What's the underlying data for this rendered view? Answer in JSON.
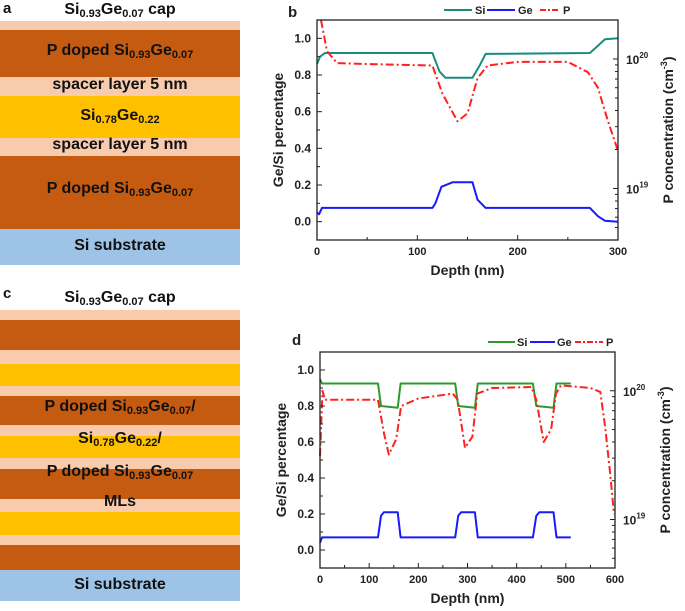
{
  "panel_a": {
    "letter": "a",
    "cap": [
      "Si",
      "0.93",
      "Ge",
      "0.07",
      " cap"
    ],
    "doped_top": [
      "P doped Si",
      "0.93",
      "Ge",
      "0.07"
    ],
    "spacer_top": "spacer layer 5 nm",
    "sige": [
      "Si",
      "0.78",
      "Ge",
      "0.22"
    ],
    "spacer_bottom": "spacer layer 5 nm",
    "doped_bottom": [
      "P doped Si",
      "0.93",
      "Ge",
      "0.07"
    ],
    "substrate": "Si substrate"
  },
  "panel_c": {
    "letter": "c",
    "cap": [
      "Si",
      "0.93",
      "Ge",
      "0.07",
      " cap"
    ],
    "line1": [
      "P doped Si",
      "0.93",
      "Ge",
      "0.07",
      "/"
    ],
    "line2": [
      "Si",
      "0.78",
      "Ge",
      "0.22",
      "/"
    ],
    "line3": [
      "P doped Si",
      "0.93",
      "Ge",
      "0.07"
    ],
    "line4": "MLs",
    "substrate": "Si substrate"
  },
  "layer_colors": {
    "spacer": "#f8cbad",
    "doped": "#c55a11",
    "sige": "#ffc000",
    "substrate": "#9dc3e6"
  },
  "chart_data": [
    {
      "panel": "b",
      "type": "line",
      "xlabel": "Depth (nm)",
      "ylabel": "Ge/Si percentage",
      "y2label": [
        "P concentration (cm",
        "-3",
        ")"
      ],
      "xlim": [
        0,
        300
      ],
      "ylim": [
        -0.1,
        1.1
      ],
      "y2lim": [
        4e+18,
        2e+20
      ],
      "y2scale": "log",
      "xticks": [
        0,
        100,
        200,
        300
      ],
      "yticks": [
        "0.0",
        "0.2",
        "0.4",
        "0.6",
        "0.8",
        "1.0"
      ],
      "y2ticks": [
        {
          "base": "10",
          "exp": "19"
        },
        {
          "base": "10",
          "exp": "20"
        }
      ],
      "legend": "top",
      "series": [
        {
          "name": "Si",
          "axis": "left",
          "color": "#1a8c7c",
          "style": "solid",
          "x": [
            0,
            3,
            8,
            115,
            122,
            128,
            155,
            162,
            168,
            272,
            280,
            287,
            300
          ],
          "y": [
            0.86,
            0.9,
            0.92,
            0.92,
            0.82,
            0.785,
            0.785,
            0.85,
            0.915,
            0.92,
            0.96,
            0.995,
            1.0
          ]
        },
        {
          "name": "Ge",
          "axis": "left",
          "color": "#1a1aff",
          "style": "solid",
          "x": [
            0,
            2,
            5,
            115,
            118,
            124,
            135,
            155,
            160,
            168,
            272,
            280,
            287,
            300
          ],
          "y": [
            0.05,
            0.04,
            0.075,
            0.075,
            0.1,
            0.19,
            0.215,
            0.215,
            0.12,
            0.075,
            0.075,
            0.03,
            0.005,
            0.0
          ]
        },
        {
          "name": "P",
          "axis": "right",
          "color": "#ff2020",
          "style": "dashdot",
          "x": [
            4,
            10,
            20,
            60,
            115,
            125,
            140,
            150,
            160,
            170,
            200,
            250,
            270,
            280,
            290,
            300
          ],
          "y": [
            2e+20,
            1.15e+20,
            9.3e+19,
            9.1e+19,
            8.9e+19,
            5.4e+19,
            3.3e+19,
            3.8e+19,
            7.1e+19,
            8.9e+19,
            9.5e+19,
            9.5e+19,
            7.9e+19,
            6e+19,
            3.3e+19,
            1.95e+19
          ]
        }
      ]
    },
    {
      "panel": "d",
      "type": "line",
      "xlabel": "Depth (nm)",
      "ylabel": "Ge/Si percentage",
      "y2label": [
        "P concentration (cm",
        "-3",
        ")"
      ],
      "xlim": [
        0,
        600
      ],
      "ylim": [
        -0.1,
        1.1
      ],
      "y2lim": [
        4.2e+18,
        2e+20
      ],
      "y2scale": "log",
      "xticks": [
        0,
        100,
        200,
        300,
        400,
        500,
        600
      ],
      "yticks": [
        "0.0",
        "0.2",
        "0.4",
        "0.6",
        "0.8",
        "1.0"
      ],
      "y2ticks": [
        {
          "base": "10",
          "exp": "19"
        },
        {
          "base": "10",
          "exp": "20"
        }
      ],
      "legend": "top-right",
      "series": [
        {
          "name": "Si",
          "axis": "left",
          "color": "#2e9a2e",
          "style": "solid",
          "x": [
            0,
            4,
            118,
            124,
            158,
            164,
            275,
            281,
            315,
            321,
            433,
            440,
            475,
            481,
            510
          ],
          "y": [
            0.95,
            0.925,
            0.925,
            0.8,
            0.79,
            0.925,
            0.925,
            0.8,
            0.79,
            0.925,
            0.925,
            0.8,
            0.79,
            0.925,
            0.925
          ]
        },
        {
          "name": "Ge",
          "axis": "left",
          "color": "#1a1aff",
          "style": "solid",
          "x": [
            0,
            4,
            118,
            124,
            130,
            158,
            164,
            275,
            281,
            287,
            315,
            321,
            433,
            440,
            446,
            475,
            481,
            510
          ],
          "y": [
            0.04,
            0.07,
            0.07,
            0.19,
            0.21,
            0.21,
            0.07,
            0.07,
            0.19,
            0.21,
            0.21,
            0.07,
            0.07,
            0.19,
            0.21,
            0.21,
            0.07,
            0.07
          ]
        },
        {
          "name": "P",
          "axis": "right",
          "color": "#ff2020",
          "style": "dashdot",
          "x": [
            0,
            5,
            10,
            20,
            118,
            130,
            140,
            155,
            165,
            200,
            270,
            280,
            295,
            310,
            320,
            350,
            430,
            440,
            455,
            470,
            480,
            490,
            550,
            570,
            580,
            590,
            598
          ],
          "y": [
            3.1e+19,
            1e+20,
            8.5e+19,
            8.5e+19,
            8.5e+19,
            4.7e+19,
            3.2e+19,
            4.2e+19,
            7.6e+19,
            8.7e+19,
            9.5e+19,
            8.5e+19,
            3.6e+19,
            4.4e+19,
            9.5e+19,
            1.05e+20,
            1.07e+20,
            8.5e+19,
            4e+19,
            5e+19,
            9.5e+19,
            1.1e+20,
            1.05e+20,
            9.8e+19,
            5.2e+19,
            2.3e+19,
            1.1e+19
          ]
        }
      ]
    }
  ]
}
